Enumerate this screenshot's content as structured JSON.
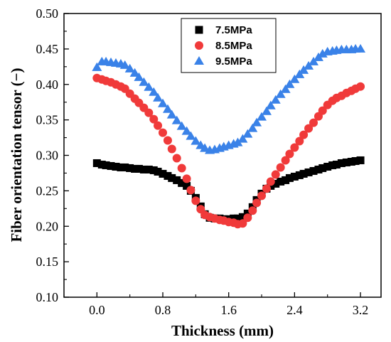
{
  "chart_data": {
    "type": "scatter",
    "xlabel": "Thickness (mm)",
    "ylabel": "Fiber orientation tensor (−)",
    "xlim": [
      -0.4,
      3.45
    ],
    "ylim": [
      0.1,
      0.5
    ],
    "xticks": [
      "0.0",
      "0.8",
      "1.6",
      "2.4",
      "3.2"
    ],
    "yticks": [
      "0.10",
      "0.15",
      "0.20",
      "0.25",
      "0.30",
      "0.35",
      "0.40",
      "0.45",
      "0.50"
    ],
    "grid": false,
    "legend_position": "top-center",
    "series": [
      {
        "name": "7.5MPa",
        "marker": "square",
        "color": "#000000",
        "x": [
          0.0,
          0.06,
          0.11,
          0.17,
          0.23,
          0.29,
          0.34,
          0.4,
          0.46,
          0.51,
          0.57,
          0.63,
          0.69,
          0.74,
          0.8,
          0.86,
          0.91,
          0.97,
          1.03,
          1.09,
          1.14,
          1.2,
          1.26,
          1.31,
          1.37,
          1.43,
          1.49,
          1.54,
          1.6,
          1.66,
          1.71,
          1.77,
          1.83,
          1.89,
          1.94,
          2.0,
          2.06,
          2.11,
          2.17,
          2.23,
          2.29,
          2.34,
          2.4,
          2.46,
          2.51,
          2.57,
          2.63,
          2.69,
          2.74,
          2.8,
          2.86,
          2.91,
          2.97,
          3.03,
          3.09,
          3.14,
          3.2
        ],
        "y": [
          0.289,
          0.287,
          0.286,
          0.285,
          0.284,
          0.283,
          0.283,
          0.282,
          0.281,
          0.281,
          0.28,
          0.28,
          0.279,
          0.277,
          0.274,
          0.271,
          0.268,
          0.265,
          0.261,
          0.257,
          0.25,
          0.24,
          0.228,
          0.217,
          0.212,
          0.211,
          0.211,
          0.21,
          0.21,
          0.211,
          0.211,
          0.213,
          0.218,
          0.227,
          0.237,
          0.246,
          0.253,
          0.257,
          0.26,
          0.263,
          0.265,
          0.268,
          0.27,
          0.272,
          0.274,
          0.276,
          0.278,
          0.28,
          0.282,
          0.284,
          0.286,
          0.287,
          0.289,
          0.29,
          0.291,
          0.292,
          0.293
        ]
      },
      {
        "name": "8.5MPa",
        "marker": "circle",
        "color": "#f03a3a",
        "x": [
          0.0,
          0.06,
          0.11,
          0.17,
          0.23,
          0.29,
          0.34,
          0.4,
          0.46,
          0.51,
          0.57,
          0.63,
          0.69,
          0.74,
          0.8,
          0.86,
          0.91,
          0.97,
          1.03,
          1.09,
          1.14,
          1.2,
          1.26,
          1.31,
          1.37,
          1.43,
          1.49,
          1.54,
          1.6,
          1.66,
          1.71,
          1.77,
          1.83,
          1.89,
          1.94,
          2.0,
          2.06,
          2.11,
          2.17,
          2.23,
          2.29,
          2.34,
          2.4,
          2.46,
          2.51,
          2.57,
          2.63,
          2.69,
          2.74,
          2.8,
          2.86,
          2.91,
          2.97,
          3.03,
          3.09,
          3.14,
          3.2
        ],
        "y": [
          0.409,
          0.407,
          0.405,
          0.403,
          0.4,
          0.397,
          0.394,
          0.387,
          0.38,
          0.374,
          0.367,
          0.36,
          0.351,
          0.342,
          0.332,
          0.321,
          0.309,
          0.296,
          0.282,
          0.267,
          0.251,
          0.236,
          0.224,
          0.216,
          0.213,
          0.211,
          0.209,
          0.208,
          0.206,
          0.205,
          0.203,
          0.204,
          0.212,
          0.222,
          0.233,
          0.243,
          0.253,
          0.263,
          0.273,
          0.283,
          0.293,
          0.302,
          0.311,
          0.32,
          0.329,
          0.338,
          0.346,
          0.355,
          0.363,
          0.371,
          0.377,
          0.381,
          0.384,
          0.388,
          0.391,
          0.394,
          0.397
        ]
      },
      {
        "name": "9.5MPa",
        "marker": "triangle",
        "color": "#3a82e8",
        "x": [
          0.0,
          0.06,
          0.11,
          0.17,
          0.23,
          0.29,
          0.34,
          0.4,
          0.46,
          0.51,
          0.57,
          0.63,
          0.69,
          0.74,
          0.8,
          0.86,
          0.91,
          0.97,
          1.03,
          1.09,
          1.14,
          1.2,
          1.26,
          1.31,
          1.37,
          1.43,
          1.49,
          1.54,
          1.6,
          1.66,
          1.71,
          1.77,
          1.83,
          1.89,
          1.94,
          2.0,
          2.06,
          2.11,
          2.17,
          2.23,
          2.29,
          2.34,
          2.4,
          2.46,
          2.51,
          2.57,
          2.63,
          2.69,
          2.74,
          2.8,
          2.86,
          2.91,
          2.97,
          3.03,
          3.09,
          3.14,
          3.2
        ],
        "y": [
          0.424,
          0.432,
          0.432,
          0.431,
          0.43,
          0.429,
          0.427,
          0.422,
          0.416,
          0.41,
          0.403,
          0.396,
          0.389,
          0.381,
          0.373,
          0.365,
          0.357,
          0.349,
          0.341,
          0.334,
          0.327,
          0.32,
          0.314,
          0.31,
          0.307,
          0.308,
          0.31,
          0.312,
          0.314,
          0.316,
          0.318,
          0.323,
          0.33,
          0.338,
          0.346,
          0.354,
          0.362,
          0.37,
          0.378,
          0.386,
          0.393,
          0.4,
          0.407,
          0.414,
          0.42,
          0.426,
          0.432,
          0.438,
          0.443,
          0.446,
          0.447,
          0.448,
          0.449,
          0.449,
          0.449,
          0.45,
          0.45
        ]
      }
    ]
  }
}
